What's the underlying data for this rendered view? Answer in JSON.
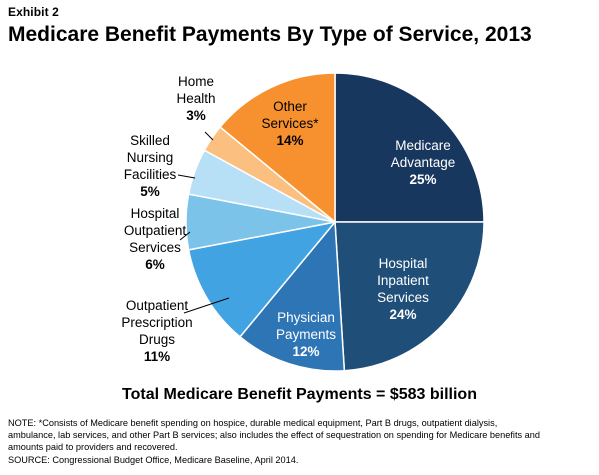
{
  "header": {
    "exhibit": "Exhibit 2",
    "title": "Medicare Benefit Payments By Type of Service, 2013"
  },
  "chart_data": {
    "type": "pie",
    "title": "Medicare Benefit Payments By Type of Service, 2013",
    "unit": "%",
    "slices": [
      {
        "label_lines": [
          "Medicare",
          "Advantage"
        ],
        "value": 25,
        "pct_label": "25%",
        "color": "#17375e"
      },
      {
        "label_lines": [
          "Hospital",
          "Inpatient",
          "Services"
        ],
        "value": 24,
        "pct_label": "24%",
        "color": "#1f4e79"
      },
      {
        "label_lines": [
          "Physician",
          "Payments"
        ],
        "value": 12,
        "pct_label": "12%",
        "color": "#2e75b6"
      },
      {
        "label_lines": [
          "Outpatient",
          "Prescription",
          "Drugs"
        ],
        "value": 11,
        "pct_label": "11%",
        "color": "#41a3e1"
      },
      {
        "label_lines": [
          "Hospital",
          "Outpatient",
          "Services"
        ],
        "value": 6,
        "pct_label": "6%",
        "color": "#7cc3ea"
      },
      {
        "label_lines": [
          "Skilled",
          "Nursing",
          "Facilities"
        ],
        "value": 5,
        "pct_label": "5%",
        "color": "#b7dff5"
      },
      {
        "label_lines": [
          "Home",
          "Health"
        ],
        "value": 3,
        "pct_label": "3%",
        "color": "#fbbf80"
      },
      {
        "label_lines": [
          "Other",
          "Services*"
        ],
        "value": 14,
        "pct_label": "14%",
        "color": "#f7912f"
      }
    ]
  },
  "summary": {
    "total": "Total Medicare Benefit Payments = $583 billion"
  },
  "notes": {
    "line1": "NOTE: *Consists of Medicare benefit spending on hospice, durable medical equipment, Part B drugs, outpatient dialysis,",
    "line2": "ambulance, lab services, and other Part B services; also includes  the effect of sequestration on spending for Medicare benefits and",
    "line3": "amounts paid to providers and recovered.",
    "line4": "SOURCE: Congressional Budget Office, Medicare Baseline, April 2014."
  }
}
